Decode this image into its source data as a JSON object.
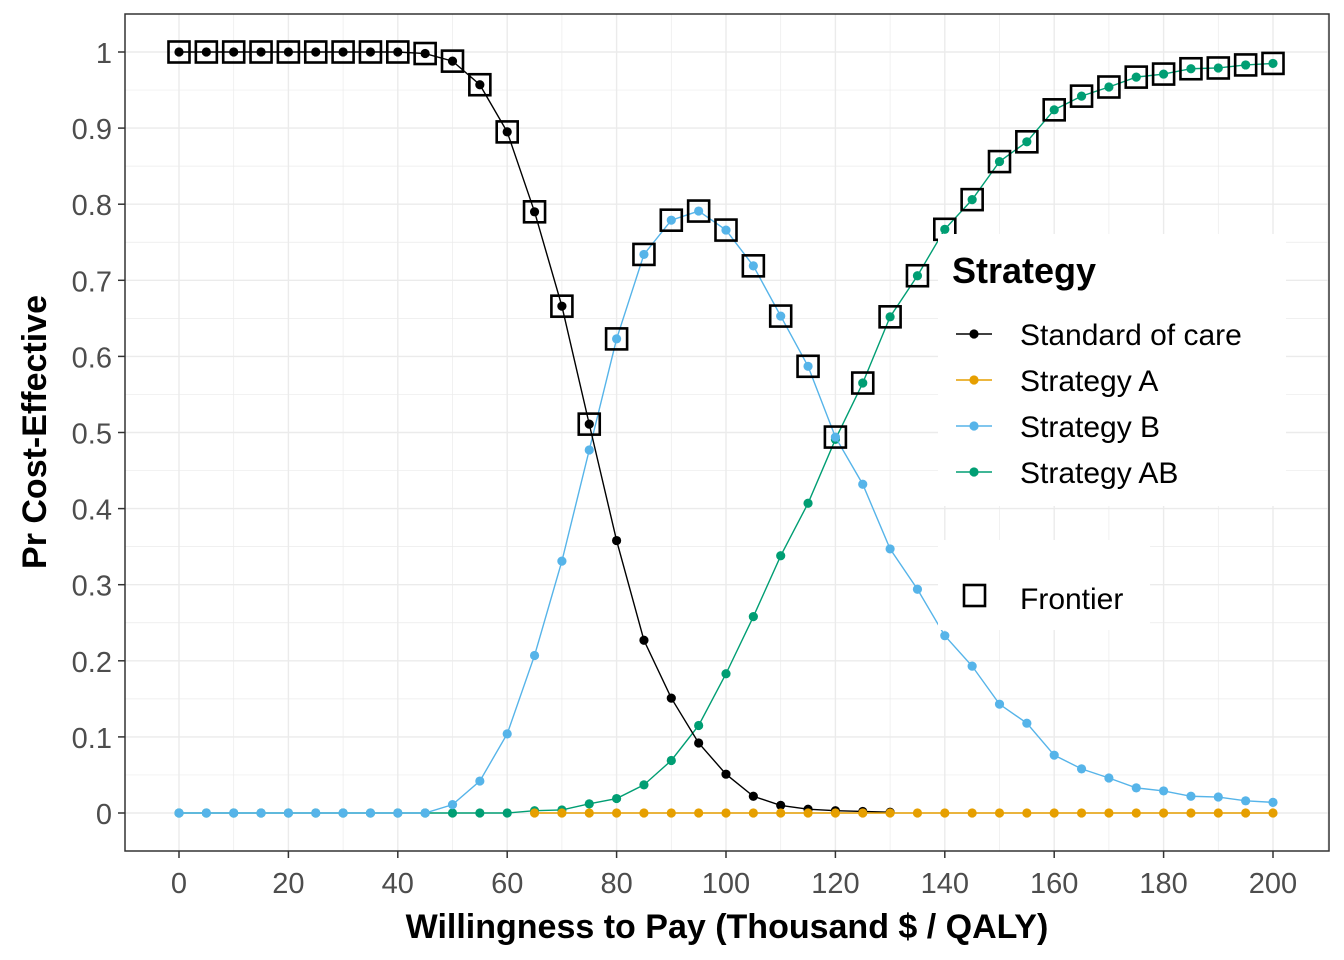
{
  "chart_data": {
    "type": "line",
    "title": "",
    "xlabel": "Willingness to Pay (Thousand $ / QALY)",
    "ylabel": "Pr Cost-Effective",
    "xlim": [
      -10,
      210
    ],
    "ylim": [
      -0.05,
      1.05
    ],
    "x_ticks": [
      "0",
      "20",
      "40",
      "60",
      "80",
      "100",
      "120",
      "140",
      "160",
      "180",
      "200"
    ],
    "y_ticks": [
      "0",
      "0.1",
      "0.2",
      "0.3",
      "0.4",
      "0.5",
      "0.6",
      "0.7",
      "0.8",
      "0.9",
      "1"
    ],
    "grid": true,
    "legend_position": "right",
    "x": [
      0,
      5,
      10,
      15,
      20,
      25,
      30,
      35,
      40,
      45,
      50,
      55,
      60,
      65,
      70,
      75,
      80,
      85,
      90,
      95,
      100,
      105,
      110,
      115,
      120,
      125,
      130,
      135,
      140,
      145,
      150,
      155,
      160,
      165,
      170,
      175,
      180,
      185,
      190,
      195,
      200
    ],
    "series": [
      {
        "name": "Standard of care",
        "color": "#000000",
        "values": [
          1,
          1,
          1,
          1,
          1,
          1,
          1,
          1,
          1,
          0.998,
          0.988,
          0.957,
          0.895,
          0.79,
          0.666,
          0.511,
          0.358,
          0.227,
          0.151,
          0.092,
          0.051,
          0.022,
          0.01,
          0.005,
          0.003,
          0.002,
          0.001,
          null,
          null,
          null,
          null,
          null,
          null,
          null,
          null,
          null,
          null,
          null,
          null,
          null,
          null
        ]
      },
      {
        "name": "Strategy A",
        "color": "#E69F00",
        "values": [
          null,
          null,
          null,
          null,
          null,
          null,
          null,
          null,
          null,
          null,
          null,
          null,
          null,
          0,
          0,
          0,
          0,
          0,
          0,
          0,
          0,
          0,
          0,
          0,
          0,
          0,
          0,
          0,
          0,
          0,
          0,
          0,
          0,
          0,
          0,
          0,
          0,
          0,
          0,
          0,
          0
        ]
      },
      {
        "name": "Strategy B",
        "color": "#56B4E9",
        "values": [
          0,
          0,
          0,
          0,
          0,
          0,
          0,
          0,
          0,
          0,
          0.011,
          0.042,
          0.104,
          0.207,
          0.331,
          0.477,
          0.623,
          0.734,
          0.779,
          0.791,
          0.766,
          0.719,
          0.653,
          0.587,
          0.494,
          0.432,
          0.347,
          0.294,
          0.233,
          0.193,
          0.143,
          0.118,
          0.076,
          0.058,
          0.046,
          0.033,
          0.029,
          0.022,
          0.021,
          0.016,
          0.014
        ]
      },
      {
        "name": "Strategy AB",
        "color": "#009E73",
        "values": [
          0,
          0,
          0,
          0,
          0,
          0,
          0,
          0,
          0,
          0,
          0,
          0,
          0,
          0.003,
          0.004,
          0.012,
          0.019,
          0.037,
          0.069,
          0.115,
          0.183,
          0.258,
          0.338,
          0.407,
          0.491,
          0.565,
          0.652,
          0.706,
          0.767,
          0.806,
          0.856,
          0.882,
          0.924,
          0.942,
          0.954,
          0.967,
          0.971,
          0.978,
          0.979,
          0.983,
          0.985
        ]
      }
    ],
    "frontier": {
      "name": "Frontier",
      "points": [
        [
          0,
          1
        ],
        [
          5,
          1
        ],
        [
          10,
          1
        ],
        [
          15,
          1
        ],
        [
          20,
          1
        ],
        [
          25,
          1
        ],
        [
          30,
          1
        ],
        [
          35,
          1
        ],
        [
          40,
          1
        ],
        [
          45,
          0.998
        ],
        [
          50,
          0.988
        ],
        [
          55,
          0.957
        ],
        [
          60,
          0.895
        ],
        [
          65,
          0.79
        ],
        [
          70,
          0.666
        ],
        [
          75,
          0.511
        ],
        [
          80,
          0.623
        ],
        [
          85,
          0.734
        ],
        [
          90,
          0.779
        ],
        [
          95,
          0.791
        ],
        [
          100,
          0.766
        ],
        [
          105,
          0.719
        ],
        [
          110,
          0.653
        ],
        [
          115,
          0.587
        ],
        [
          120,
          0.494
        ],
        [
          125,
          0.565
        ],
        [
          130,
          0.652
        ],
        [
          135,
          0.706
        ],
        [
          140,
          0.767
        ],
        [
          145,
          0.806
        ],
        [
          150,
          0.856
        ],
        [
          155,
          0.882
        ],
        [
          160,
          0.924
        ],
        [
          165,
          0.942
        ],
        [
          170,
          0.954
        ],
        [
          175,
          0.967
        ],
        [
          180,
          0.971
        ],
        [
          185,
          0.978
        ],
        [
          190,
          0.979
        ],
        [
          195,
          0.983
        ],
        [
          200,
          0.985
        ]
      ]
    },
    "legend": {
      "title": "Strategy",
      "entries": [
        "Standard of care",
        "Strategy A",
        "Strategy B",
        "Strategy AB"
      ],
      "frontier_label": "Frontier"
    }
  }
}
